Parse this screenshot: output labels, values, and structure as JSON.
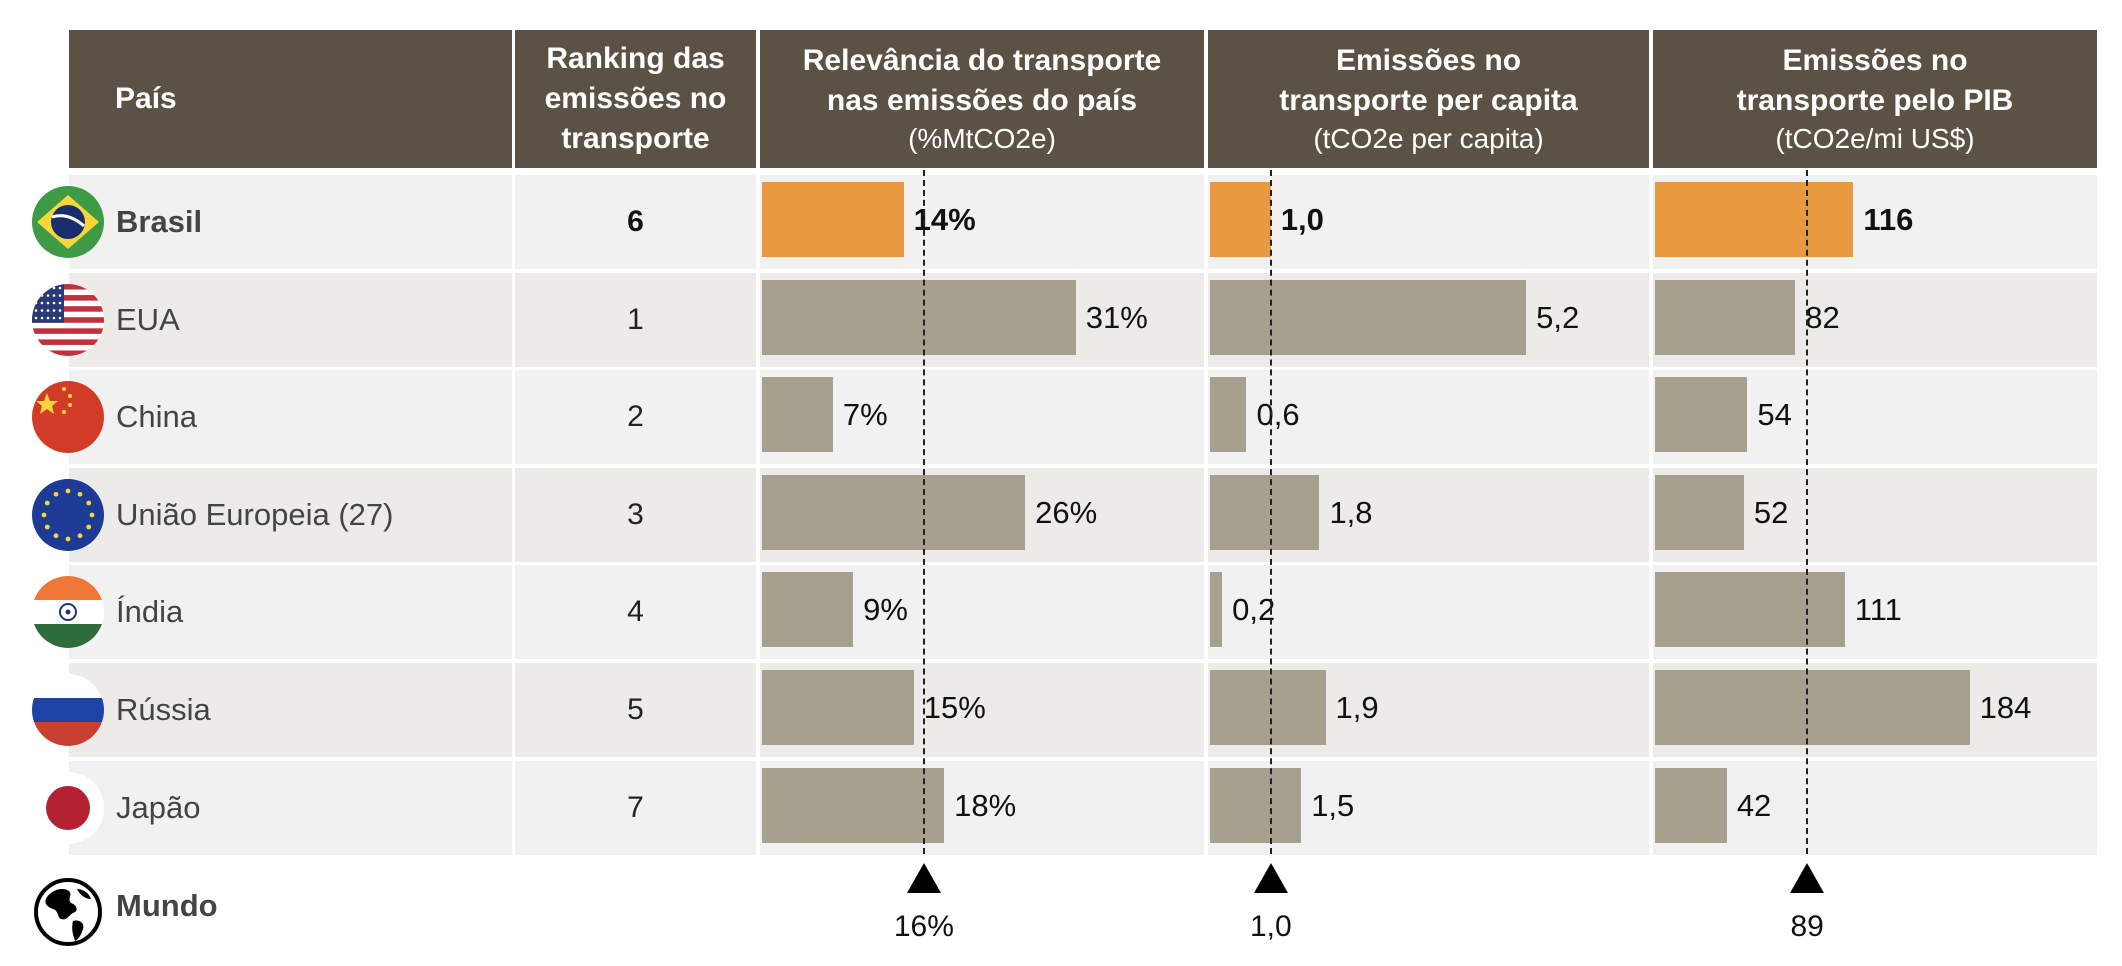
{
  "headers": {
    "country": "País",
    "ranking": [
      "Ranking das",
      "emissões no",
      "transporte"
    ],
    "relevance": {
      "title": [
        "Relevância do transporte",
        "nas emissões do país"
      ],
      "unit": "(%MtCO2e)"
    },
    "per_capita": {
      "title": [
        "Emissões no",
        "transporte per capita"
      ],
      "unit": "(tCO2e per capita)"
    },
    "per_gdp": {
      "title": [
        "Emissões no",
        "transporte pelo PIB"
      ],
      "unit": "(tCO2e/mi US$)"
    }
  },
  "colors": {
    "header_bg": "#5b5245",
    "bar": "#a8a08e",
    "highlight_bar": "#e99a40",
    "row_a": "#f1f1f1",
    "row_b": "#edebe8"
  },
  "world": {
    "label": "Mundo",
    "icon": "globe-icon",
    "relevance_label": "16%",
    "per_capita_label": "1,0",
    "per_gdp_label": "89"
  },
  "chart_data": {
    "type": "table",
    "title": "",
    "columns": [
      "País",
      "Ranking das emissões no transporte",
      "Relevância do transporte nas emissões do país (%MtCO2e)",
      "Emissões no transporte per capita (tCO2e per capita)",
      "Emissões no transporte pelo PIB (tCO2e/mi US$)"
    ],
    "highlight": "Brasil",
    "rows": [
      {
        "country": "Brasil",
        "flag": "brazil-flag-icon",
        "rank": "6",
        "relevance": 14,
        "relevance_label": "14%",
        "per_capita": 1.0,
        "per_capita_label": "1,0",
        "per_gdp": 116,
        "per_gdp_label": "116",
        "highlight": true
      },
      {
        "country": "EUA",
        "flag": "usa-flag-icon",
        "rank": "1",
        "relevance": 31,
        "relevance_label": "31%",
        "per_capita": 5.2,
        "per_capita_label": "5,2",
        "per_gdp": 82,
        "per_gdp_label": "82",
        "highlight": false
      },
      {
        "country": "China",
        "flag": "china-flag-icon",
        "rank": "2",
        "relevance": 7,
        "relevance_label": "7%",
        "per_capita": 0.6,
        "per_capita_label": "0,6",
        "per_gdp": 54,
        "per_gdp_label": "54",
        "highlight": false
      },
      {
        "country": "União Europeia (27)",
        "flag": "eu-flag-icon",
        "rank": "3",
        "relevance": 26,
        "relevance_label": "26%",
        "per_capita": 1.8,
        "per_capita_label": "1,8",
        "per_gdp": 52,
        "per_gdp_label": "52",
        "highlight": false
      },
      {
        "country": "Índia",
        "flag": "india-flag-icon",
        "rank": "4",
        "relevance": 9,
        "relevance_label": "9%",
        "per_capita": 0.2,
        "per_capita_label": "0,2",
        "per_gdp": 111,
        "per_gdp_label": "111",
        "highlight": false
      },
      {
        "country": "Rússia",
        "flag": "russia-flag-icon",
        "rank": "5",
        "relevance": 15,
        "relevance_label": "15%",
        "per_capita": 1.9,
        "per_capita_label": "1,9",
        "per_gdp": 184,
        "per_gdp_label": "184",
        "highlight": false
      },
      {
        "country": "Japão",
        "flag": "japan-flag-icon",
        "rank": "7",
        "relevance": 18,
        "relevance_label": "18%",
        "per_capita": 1.5,
        "per_capita_label": "1,5",
        "per_gdp": 42,
        "per_gdp_label": "42",
        "highlight": false
      }
    ],
    "reference": {
      "label": "Mundo",
      "relevance": 16,
      "per_capita": 1.0,
      "per_gdp": 89
    }
  }
}
